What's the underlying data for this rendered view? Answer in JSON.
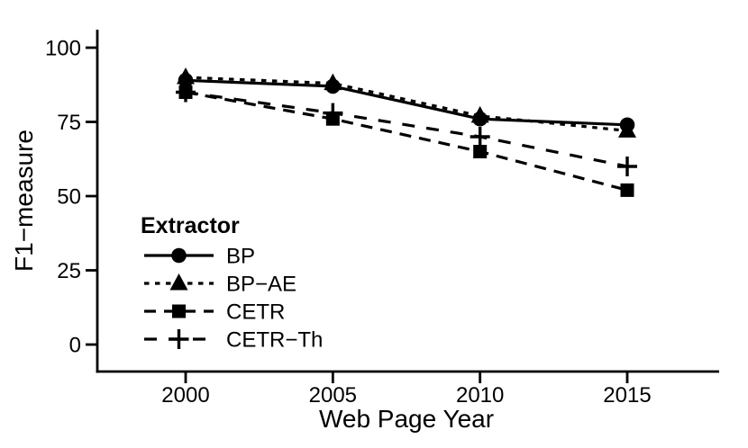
{
  "figure": {
    "background": "#ffffff",
    "foreground": "#000000"
  },
  "chart_data": {
    "type": "line",
    "title": "",
    "xlabel": "Web Page Year",
    "ylabel": "F1−measure",
    "x": [
      2000,
      2005,
      2010,
      2015
    ],
    "x_tick_labels": [
      "2000",
      "2005",
      "2010",
      "2015"
    ],
    "yticks": [
      0,
      25,
      50,
      75,
      100
    ],
    "ytick_labels": [
      "0",
      "25",
      "50",
      "75",
      "100"
    ],
    "ylim": [
      0,
      105
    ],
    "xlim": [
      1997,
      2018
    ],
    "grid": false,
    "legend": {
      "title": "Extractor",
      "position": "inside-bottom-left"
    },
    "series": [
      {
        "name": "BP",
        "marker": "circle",
        "linestyle": "solid",
        "color": "#000000",
        "values": [
          89,
          87,
          76,
          74
        ]
      },
      {
        "name": "BP−AE",
        "marker": "triangle",
        "linestyle": "dotted",
        "color": "#000000",
        "values": [
          90,
          88,
          77,
          72
        ]
      },
      {
        "name": "CETR",
        "marker": "square",
        "linestyle": "dashed",
        "color": "#000000",
        "values": [
          85,
          76,
          65,
          52
        ]
      },
      {
        "name": "CETR−Th",
        "marker": "plus",
        "linestyle": "longdash",
        "color": "#000000",
        "values": [
          85,
          78,
          70,
          60
        ]
      }
    ]
  }
}
